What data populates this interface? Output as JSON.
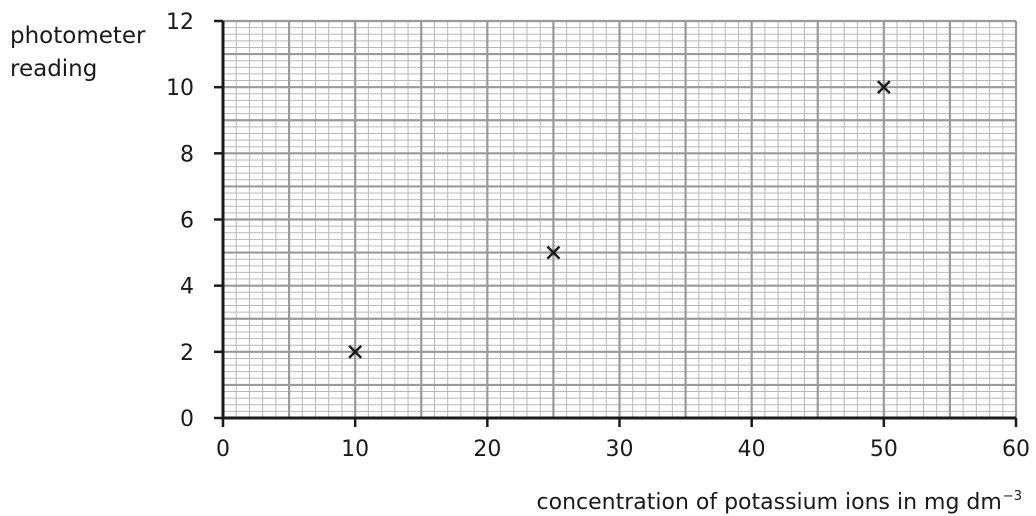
{
  "chart_data": {
    "type": "scatter",
    "title": "",
    "ylabel_lines": [
      "photometer",
      "reading"
    ],
    "xlabel": "concentration of potassium ions in mg dm",
    "xlabel_superscript": "−3",
    "xlim": [
      0,
      60
    ],
    "ylim": [
      0,
      12
    ],
    "x_ticks": [
      0,
      10,
      20,
      30,
      40,
      50,
      60
    ],
    "y_ticks": [
      0,
      2,
      4,
      6,
      8,
      10,
      12
    ],
    "grid": true,
    "marker": "x",
    "points": [
      {
        "x": 10,
        "y": 2
      },
      {
        "x": 25,
        "y": 5
      },
      {
        "x": 50,
        "y": 10
      }
    ]
  }
}
